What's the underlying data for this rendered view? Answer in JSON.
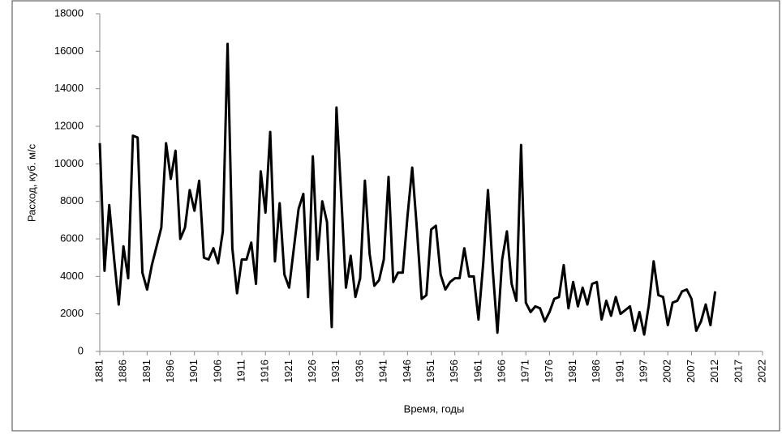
{
  "chart_data": {
    "type": "line",
    "y_label": "Расход, куб. м/с",
    "x_label": "Время,  годы",
    "categories": [
      "1881",
      null,
      null,
      null,
      null,
      "1886",
      null,
      null,
      null,
      null,
      "1891",
      null,
      null,
      null,
      null,
      "1896",
      null,
      null,
      null,
      null,
      "1901",
      null,
      null,
      null,
      null,
      "1906",
      null,
      null,
      null,
      null,
      "1911",
      null,
      null,
      null,
      null,
      "1916",
      null,
      null,
      null,
      null,
      "1921",
      null,
      null,
      null,
      null,
      "1926",
      null,
      null,
      null,
      null,
      "1931",
      null,
      null,
      null,
      null,
      "1936",
      null,
      null,
      null,
      null,
      "1941",
      null,
      null,
      null,
      null,
      "1946",
      null,
      null,
      null,
      null,
      "1951",
      null,
      null,
      null,
      null,
      "1956",
      null,
      null,
      null,
      null,
      "1961",
      null,
      null,
      null,
      null,
      "1966",
      null,
      null,
      null,
      null,
      "1971",
      null,
      null,
      null,
      null,
      "1976",
      null,
      null,
      null,
      null,
      "1981",
      null,
      null,
      null,
      null,
      "1986",
      null,
      null,
      null,
      null,
      "1991",
      null,
      null,
      null,
      null,
      "1997",
      null,
      null,
      null,
      null,
      "2002",
      null,
      null,
      null,
      null,
      "2007",
      null,
      null,
      null,
      null,
      "2012",
      null,
      null,
      null,
      null,
      "2017",
      null,
      null,
      null,
      null,
      "2022"
    ],
    "series": [
      {
        "color": "#000000",
        "values": [
          11100,
          4300,
          7800,
          5000,
          2500,
          5600,
          3900,
          11500,
          11400,
          4200,
          3300,
          4600,
          5600,
          6600,
          11100,
          9200,
          10700,
          6000,
          6600,
          8600,
          7500,
          9100,
          5000,
          4900,
          5500,
          4700,
          6400,
          16400,
          5500,
          3100,
          4900,
          4900,
          5800,
          3600,
          9600,
          7400,
          11700,
          4800,
          7900,
          4100,
          3400,
          5500,
          7600,
          8400,
          2900,
          10400,
          4900,
          8000,
          6900,
          1300,
          13000,
          8300,
          3400,
          5100,
          2900,
          3900,
          9100,
          5200,
          3500,
          3800,
          4900,
          9300,
          3700,
          4200,
          4200,
          7200,
          9800,
          6500,
          2800,
          3000,
          6500,
          6700,
          4100,
          3300,
          3700,
          3900,
          3900,
          5500,
          4000,
          4000,
          1700,
          4700,
          8600,
          4400,
          1000,
          4900,
          6400,
          3600,
          2700,
          11000,
          2600,
          2100,
          2400,
          2300,
          1600,
          2100,
          2800,
          2900,
          4600,
          2300,
          3700,
          2400,
          3400,
          2500,
          3600,
          3700,
          1700,
          2700,
          1900,
          2900,
          2000,
          2200,
          2400,
          1100,
          2100,
          900,
          2500,
          4800,
          3000,
          2900,
          1400,
          2600,
          2700,
          3200,
          3300,
          2800,
          1100,
          1600,
          2500,
          1400,
          3200,
          null,
          null,
          null,
          null,
          null,
          null,
          null,
          null,
          null,
          null
        ]
      }
    ],
    "ylim": [
      0,
      18000
    ],
    "yticks": [
      0,
      2000,
      4000,
      6000,
      8000,
      10000,
      12000,
      14000,
      16000,
      18000
    ],
    "grid": false
  }
}
